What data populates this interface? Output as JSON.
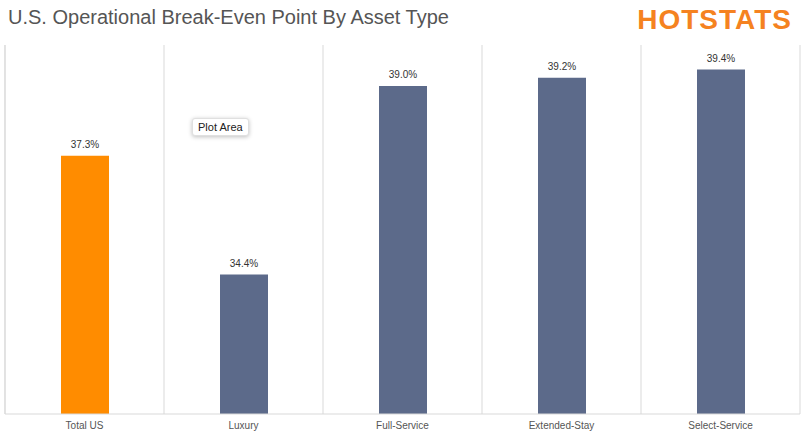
{
  "chart_data": {
    "type": "bar",
    "title": "U.S. Operational Break-Even Point By Asset Type",
    "annotations": [
      "HOTSTATS",
      "Plot Area"
    ],
    "categories": [
      "Total US",
      "Luxury",
      "Full-Service",
      "Extended-Stay",
      "Select-Service"
    ],
    "values": [
      37.3,
      34.4,
      39.0,
      39.2,
      39.4
    ],
    "value_labels": [
      "37.3%",
      "34.4%",
      "39.0%",
      "39.2%",
      "39.4%"
    ],
    "colors": [
      "#ff8c00",
      "#5c6a8a",
      "#5c6a8a",
      "#5c6a8a",
      "#5c6a8a"
    ],
    "ylim": [
      31,
      40
    ],
    "grid": true,
    "data_labels": true,
    "tick_labels": "x"
  }
}
